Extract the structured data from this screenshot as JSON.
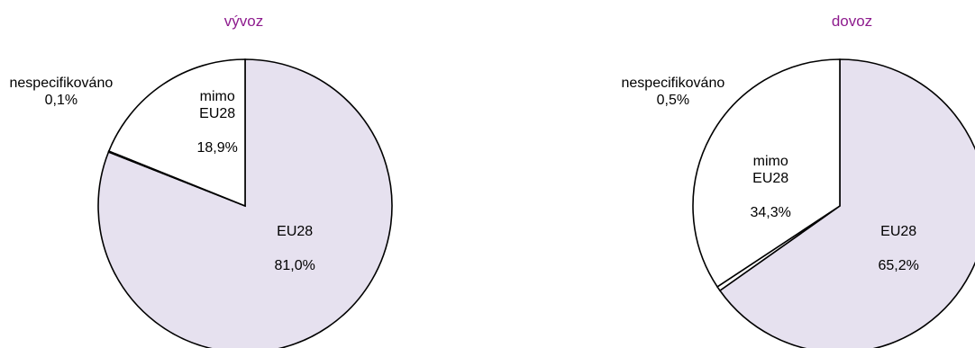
{
  "chart_data": [
    {
      "type": "pie",
      "title": "vývoz",
      "slices": [
        {
          "label": "EU28",
          "value": 81.0,
          "value_label": "81,0%",
          "color": "#e6e1ef"
        },
        {
          "label": "nespecifikováno",
          "value": 0.1,
          "value_label": "0,1%",
          "color": "#ffffff"
        },
        {
          "label": "mimo\nEU28",
          "value": 18.9,
          "value_label": "18,9%",
          "color": "#ffffff"
        }
      ]
    },
    {
      "type": "pie",
      "title": "dovoz",
      "slices": [
        {
          "label": "EU28",
          "value": 65.2,
          "value_label": "65,2%",
          "color": "#e6e1ef"
        },
        {
          "label": "nespecifikováno",
          "value": 0.5,
          "value_label": "0,5%",
          "color": "#ffffff"
        },
        {
          "label": "mimo\nEU28",
          "value": 34.3,
          "value_label": "34,3%",
          "color": "#ffffff"
        }
      ]
    }
  ],
  "colors": {
    "title": "#8e1c8e",
    "outline": "#000000"
  }
}
